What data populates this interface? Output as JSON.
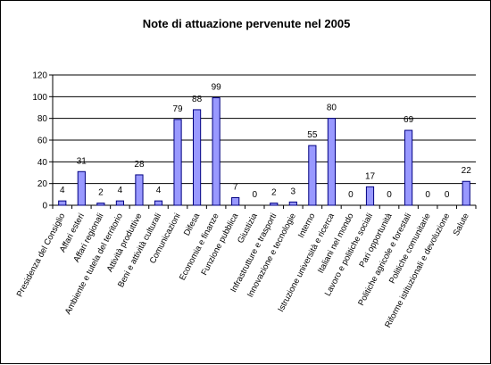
{
  "chart_data": {
    "type": "bar",
    "title": "Note di attuazione pervenute nel 2005",
    "xlabel": "",
    "ylabel": "",
    "ylim": [
      0,
      120
    ],
    "yticks": [
      0,
      20,
      40,
      60,
      80,
      100,
      120
    ],
    "grid": true,
    "legend": "none",
    "bar_color": "#9999ff",
    "bar_edge_color": "#000080",
    "categories": [
      "Presidenza del Consiglio",
      "Affari esteri",
      "Affari regionali",
      "Ambiente e tutela del territorio",
      "Attività produttive",
      "Beni e attività culturali",
      "Comunicazioni",
      "Difesa",
      "Economia e finanze",
      "Funzione pubblica",
      "Giustizia",
      "Infrastrutture e trasporti",
      "Innovazione e tecnologie",
      "Interno",
      "Istruzione università e ricerca",
      "Italiani nel mondo",
      "Lavoro e politiche sociali",
      "Pari opportunità",
      "Politiche agricole e forestali",
      "Politiche comunitarie",
      "Riforme istituzionali e devoluzione",
      "Salute"
    ],
    "values": [
      4,
      31,
      2,
      4,
      28,
      4,
      79,
      88,
      99,
      7,
      0,
      2,
      3,
      55,
      80,
      0,
      17,
      0,
      69,
      0,
      0,
      22
    ]
  }
}
